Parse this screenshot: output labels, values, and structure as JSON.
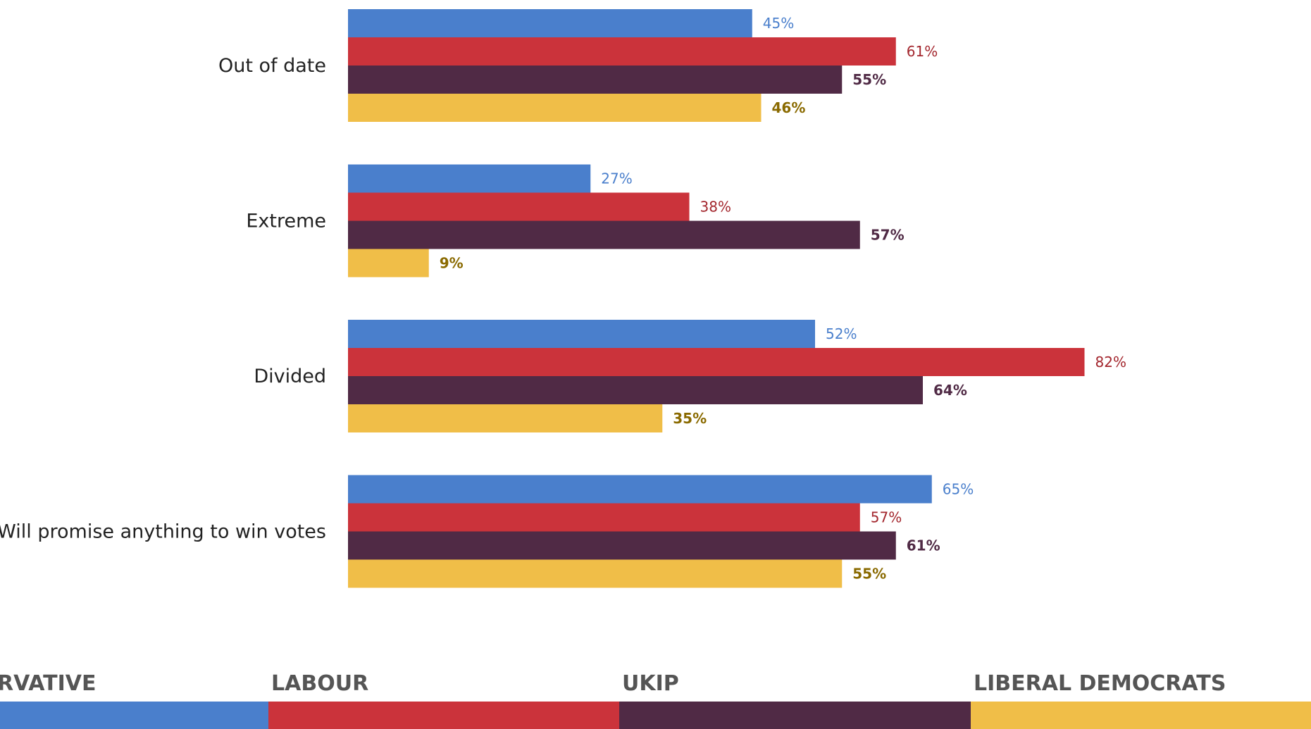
{
  "chart_data": {
    "type": "bar",
    "orientation": "horizontal",
    "categories": [
      "Out of date",
      "Extreme",
      "Divided",
      "Will promise anything to win votes"
    ],
    "series": [
      {
        "name": "CONSERVATIVE",
        "color": "#4a7fcc",
        "label_color": "#4a7fcc",
        "values": [
          45,
          27,
          52,
          65
        ],
        "labels": [
          "45%",
          "27%",
          "52%",
          "65%"
        ]
      },
      {
        "name": "LABOUR",
        "color": "#cb333b",
        "label_color": "#a3262d",
        "values": [
          61,
          38,
          82,
          57
        ],
        "labels": [
          "61%",
          "38%",
          "82%",
          "57%"
        ]
      },
      {
        "name": "UKIP",
        "color": "#502a45",
        "label_color": "#502a45",
        "values": [
          55,
          57,
          64,
          61
        ],
        "labels": [
          "55%",
          "57%",
          "64%",
          "61%"
        ]
      },
      {
        "name": "LIBERAL DEMOCRATS",
        "color": "#f0be48",
        "label_color": "#8a6a00",
        "values": [
          46,
          9,
          35,
          55
        ],
        "labels": [
          "46%",
          "9%",
          "35%",
          "55%"
        ]
      }
    ],
    "xlim": [
      0,
      100
    ],
    "grid": false,
    "legend_position": "bottom"
  },
  "legend": {
    "items": [
      {
        "label": "CONSERVATIVE",
        "visible_text": "RVATIVE",
        "color": "#4a7fcc"
      },
      {
        "label": "LABOUR",
        "visible_text": "LABOUR",
        "color": "#cb333b"
      },
      {
        "label": "UKIP",
        "visible_text": "UKIP",
        "color": "#502a45"
      },
      {
        "label": "LIBERAL DEMOCRATS",
        "visible_text": "LIBERAL DEMOCRATS",
        "color": "#f0be48"
      }
    ]
  }
}
